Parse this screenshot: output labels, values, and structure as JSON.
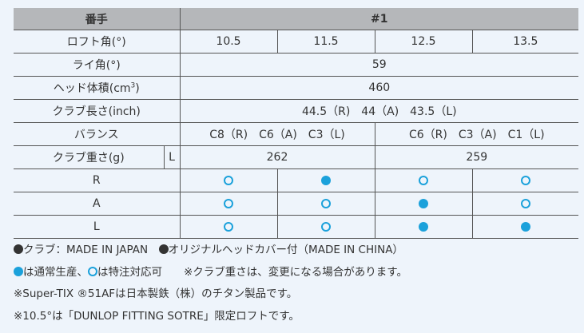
{
  "colors": {
    "accent": "#1ba1db",
    "header_bg": "#b5b7ba",
    "background": "#eef4fb"
  },
  "header": {
    "label": "番手",
    "value": "#1"
  },
  "loft": {
    "label": "ロフト角(°)",
    "values": [
      "10.5",
      "11.5",
      "12.5",
      "13.5"
    ]
  },
  "lie": {
    "label": "ライ角(°)",
    "value": "59"
  },
  "volume": {
    "label_main": "ヘッド体積(cm",
    "label_sup": "3",
    "label_end": ")",
    "value": "460"
  },
  "length": {
    "label": "クラブ長さ(inch)",
    "value": "44.5（R)　44（A)　43.5（L)"
  },
  "balance": {
    "label": "バランス",
    "left": "C8（R)　C6（A)　C3（L)",
    "right": "C6（R)　C3（A)　C1（L)"
  },
  "weight": {
    "label": "クラブ重さ(g)",
    "flex": "L",
    "left": "262",
    "right": "259"
  },
  "flex_rows": [
    {
      "label": "R",
      "availability": [
        "special",
        "standard",
        "special",
        "special"
      ]
    },
    {
      "label": "A",
      "availability": [
        "special",
        "special",
        "standard",
        "special"
      ]
    },
    {
      "label": "L",
      "availability": [
        "special",
        "special",
        "standard",
        "standard"
      ]
    }
  ],
  "notes": {
    "made_club": "クラブ：MADE IN JAPAN",
    "made_cover": "オリジナルヘッドカバー付（MADE IN CHINA）",
    "standard": "は通常生産、",
    "special": "は特注対応可",
    "weight_note": "※クラブ重さは、変更になる場合があります。",
    "titanium": "※Super-TIX ®51AFは日本製鉄（株）のチタン製品です。",
    "loft_note": "※10.5°は「DUNLOP FITTING SOTRE」限定ロフトです。"
  }
}
